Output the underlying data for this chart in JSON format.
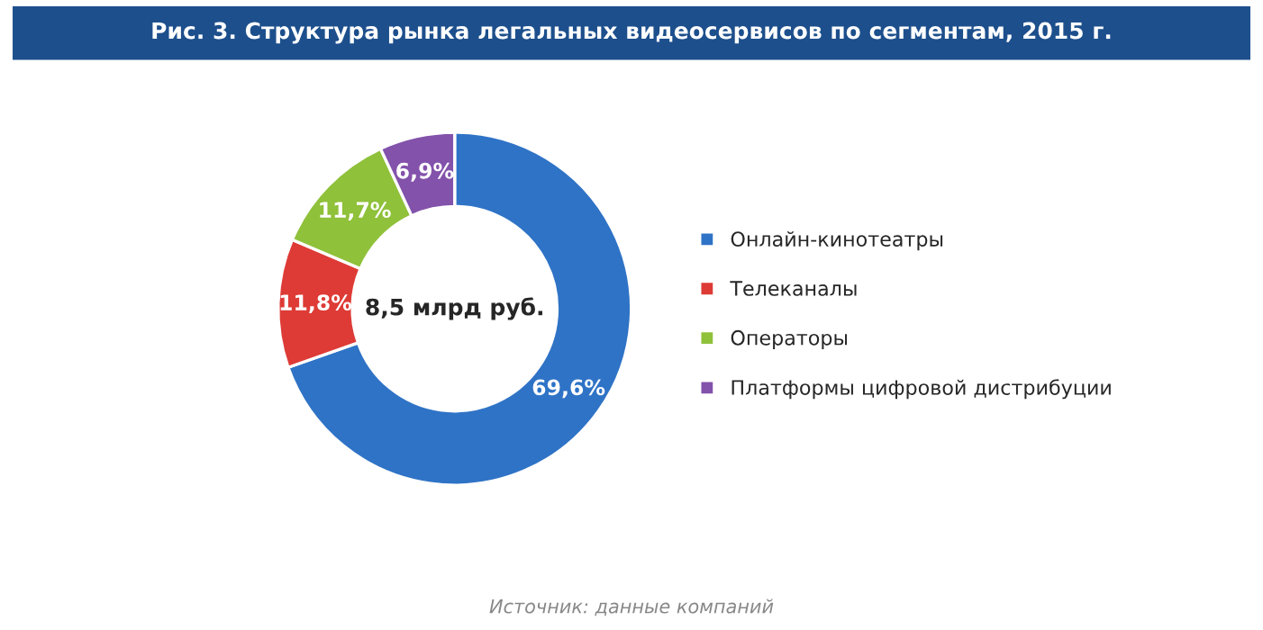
{
  "chart_data": {
    "type": "donut",
    "title": "Рис. 3. Структура рынка легальных видеосервисов по сегментам, 2015 г.",
    "categories": [
      "Онлайн-кинотеатры",
      "Телеканалы",
      "Операторы",
      "Платформы цифровой дистрибуции"
    ],
    "values": [
      69.6,
      11.8,
      11.7,
      6.9
    ],
    "value_labels": [
      "69,6%",
      "11,8%",
      "11,7%",
      "6,9%"
    ],
    "colors": [
      "#2f73c6",
      "#de3b36",
      "#8fc13a",
      "#8352ab"
    ],
    "annotations": [
      "8,5 млрд руб.",
      "Источник: данные компаний"
    ],
    "legend": "right"
  }
}
